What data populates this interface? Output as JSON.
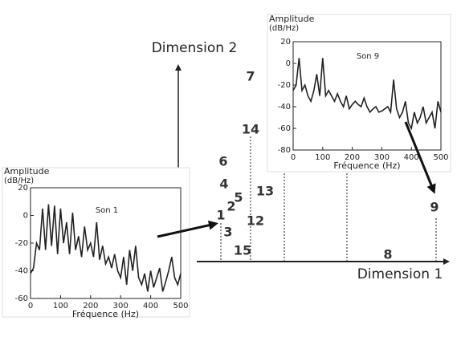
{
  "figure": {
    "dimension_1": "Dimension 1",
    "dimension_2": "Dimension 2",
    "points": [
      "7",
      "14",
      "6",
      "4",
      "5",
      "2",
      "13",
      "1",
      "12",
      "3",
      "15",
      "8",
      "9"
    ]
  },
  "insets": [
    {
      "type": "line",
      "title": "Son 1",
      "ylabel_line1": "Amplitude",
      "ylabel_line2": "(dB/Hz)",
      "xlabel": "Fréquence (Hz)",
      "x": [
        0,
        10,
        20,
        30,
        40,
        50,
        60,
        70,
        80,
        90,
        100,
        110,
        120,
        130,
        140,
        150,
        160,
        170,
        180,
        190,
        200,
        210,
        220,
        230,
        240,
        250,
        260,
        270,
        280,
        290,
        300,
        310,
        320,
        330,
        340,
        350,
        360,
        370,
        380,
        390,
        400,
        410,
        420,
        430,
        440,
        450,
        460,
        470,
        480,
        490,
        500
      ],
      "values": [
        -42,
        -38,
        -20,
        -25,
        5,
        -25,
        8,
        -22,
        7,
        -28,
        5,
        -20,
        -5,
        -28,
        2,
        -25,
        -15,
        -30,
        -8,
        -25,
        -20,
        -30,
        -5,
        -32,
        -22,
        -35,
        -30,
        -38,
        -28,
        -40,
        -45,
        -30,
        -50,
        -25,
        -40,
        -22,
        -45,
        -50,
        -42,
        -55,
        -40,
        -52,
        -45,
        -38,
        -55,
        -48,
        -40,
        -30,
        -45,
        -50,
        -42
      ],
      "xlim": [
        0,
        500
      ],
      "ylim": [
        -60,
        20
      ],
      "xticks": [
        0,
        100,
        200,
        300,
        400,
        500
      ],
      "yticks": [
        -60,
        -40,
        -20,
        0,
        20
      ]
    },
    {
      "type": "line",
      "title": "Son 9",
      "ylabel_line1": "Amplitude",
      "ylabel_line2": "(dB/Hz)",
      "xlabel": "Fréquence (Hz)",
      "x": [
        0,
        10,
        20,
        30,
        40,
        50,
        60,
        70,
        80,
        90,
        100,
        110,
        120,
        130,
        140,
        150,
        160,
        170,
        180,
        190,
        200,
        210,
        220,
        230,
        240,
        250,
        260,
        270,
        280,
        290,
        300,
        310,
        320,
        330,
        340,
        350,
        360,
        370,
        380,
        390,
        400,
        410,
        420,
        430,
        440,
        450,
        460,
        470,
        480,
        490,
        500
      ],
      "values": [
        -25,
        -20,
        5,
        -25,
        -20,
        -30,
        -35,
        -25,
        -10,
        -30,
        5,
        -30,
        -25,
        -30,
        -35,
        -28,
        -35,
        -40,
        -30,
        -42,
        -38,
        -35,
        -38,
        -40,
        -32,
        -40,
        -45,
        -42,
        -40,
        -45,
        -44,
        -42,
        -40,
        -45,
        -15,
        -42,
        -50,
        -45,
        -35,
        -55,
        -60,
        -45,
        -55,
        -50,
        -40,
        -55,
        -50,
        -45,
        -60,
        -35,
        -45
      ],
      "xlim": [
        0,
        500
      ],
      "ylim": [
        -80,
        20
      ],
      "xticks": [
        0,
        100,
        200,
        300,
        400,
        500
      ],
      "yticks": [
        -80,
        -60,
        -40,
        -20,
        0,
        20
      ]
    }
  ]
}
